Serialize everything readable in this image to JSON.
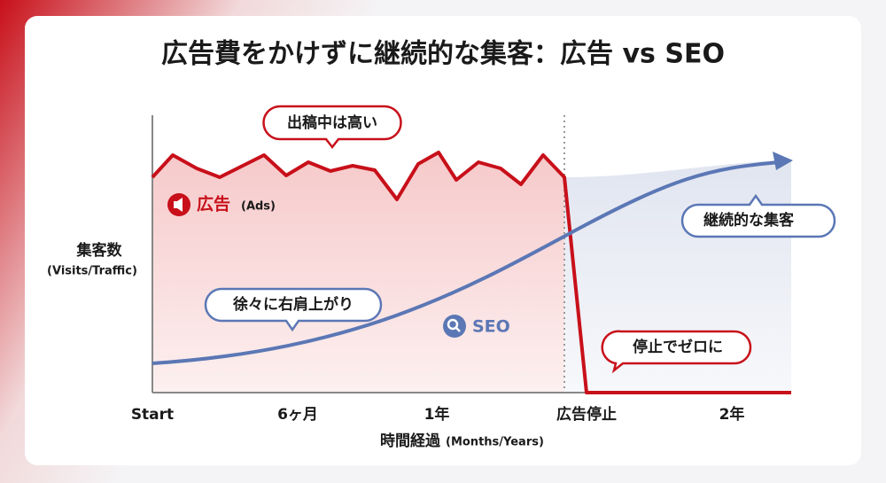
{
  "title": "広告費をかけずに継続的な集客：広告 vs SEO",
  "y_axis": {
    "label": "集客数",
    "sub": "(Visits/Traffic)"
  },
  "x_axis": {
    "labels": [
      "Start",
      "6ヶ月",
      "1年",
      "広告停止",
      "2年"
    ],
    "label": "時間経過",
    "sub": "(Months/Years)"
  },
  "series": {
    "ads": {
      "name": "広告",
      "sub": "(Ads)"
    },
    "seo": {
      "name": "SEO"
    }
  },
  "callouts": [
    "出稿中は高い",
    "徐々に右肩上がり",
    "継続的な集客",
    "停止でゼロに"
  ]
}
